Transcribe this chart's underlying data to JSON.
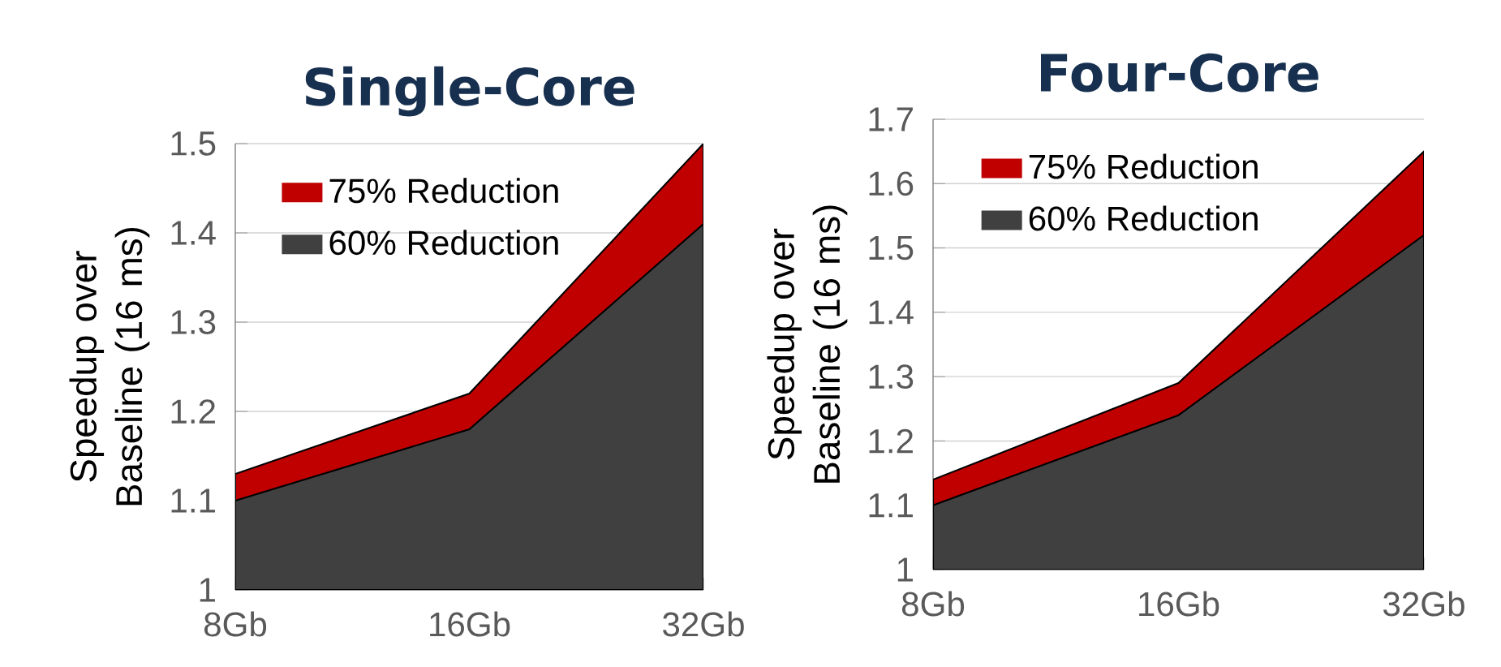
{
  "chart_data": [
    {
      "type": "area",
      "title": "Single-Core",
      "ylabel": "Speedup over Baseline (16 ms)",
      "categories": [
        "8Gb",
        "16Gb",
        "32Gb"
      ],
      "series": [
        {
          "name": "75% Reduction",
          "color": "#c00000",
          "values": [
            1.13,
            1.22,
            1.5
          ]
        },
        {
          "name": "60% Reduction",
          "color": "#404040",
          "values": [
            1.1,
            1.18,
            1.41
          ]
        }
      ],
      "ylim": [
        1,
        1.5
      ],
      "yticks": [
        1,
        1.1,
        1.2,
        1.3,
        1.4,
        1.5
      ],
      "grid": "y",
      "legend": "top left"
    },
    {
      "type": "area",
      "title": "Four-Core",
      "ylabel": "Speedup over Baseline (16 ms)",
      "categories": [
        "8Gb",
        "16Gb",
        "32Gb"
      ],
      "series": [
        {
          "name": "75% Reduction",
          "color": "#c00000",
          "values": [
            1.14,
            1.29,
            1.65
          ]
        },
        {
          "name": "60% Reduction",
          "color": "#404040",
          "values": [
            1.1,
            1.24,
            1.52
          ]
        }
      ],
      "ylim": [
        1,
        1.7
      ],
      "yticks": [
        1,
        1.1,
        1.2,
        1.3,
        1.4,
        1.5,
        1.6,
        1.7
      ],
      "grid": "y",
      "legend": "top left"
    }
  ]
}
